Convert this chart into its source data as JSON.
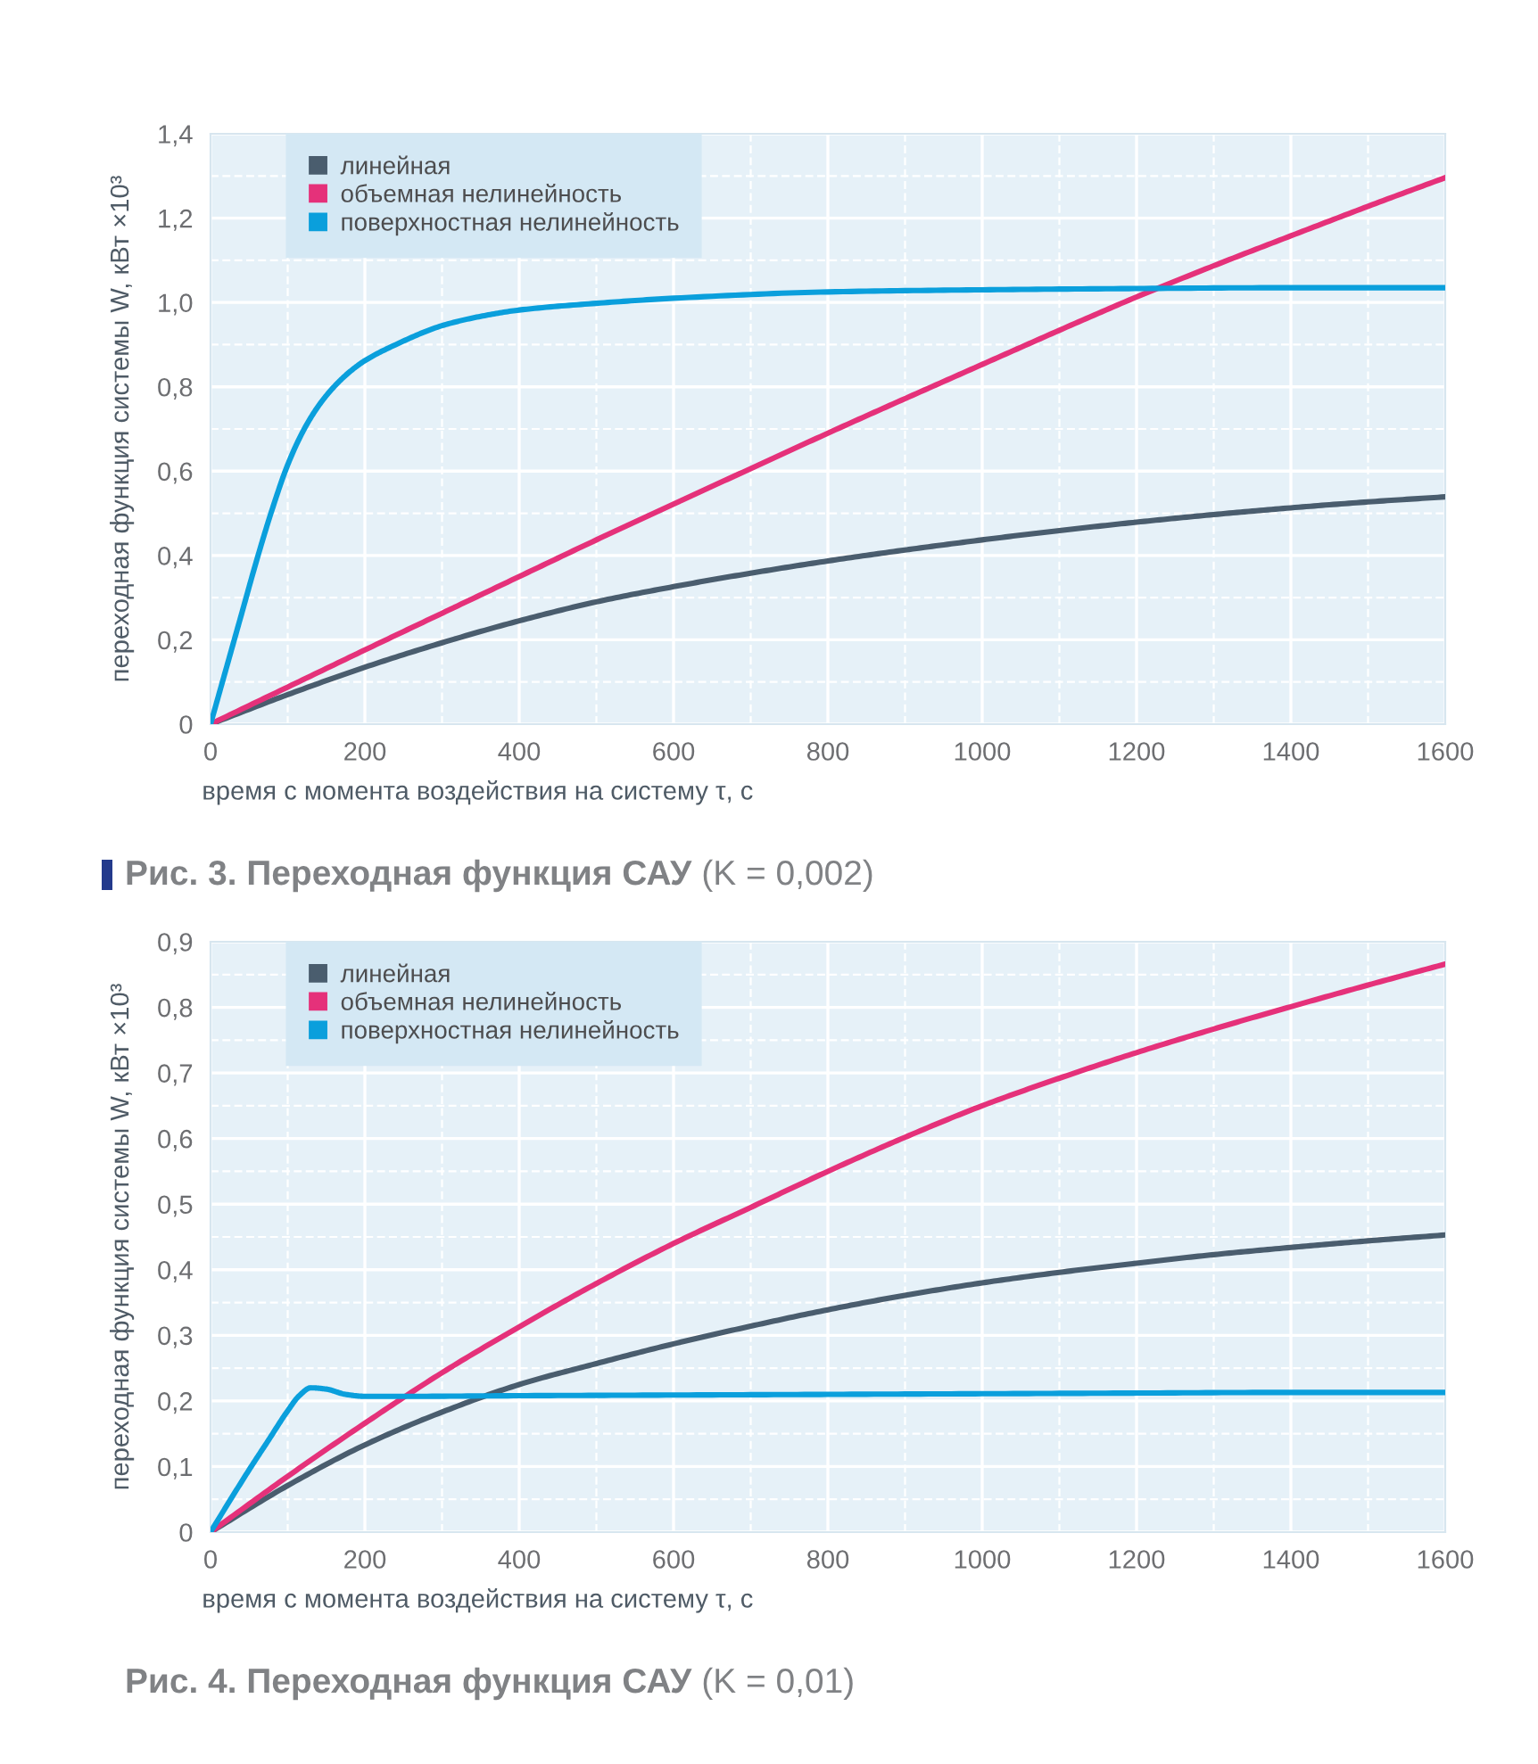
{
  "chart_data": [
    {
      "type": "line",
      "title": "Рис. 3. Переходная функция САУ",
      "subtitle": "(K = 0,002)",
      "xlabel": "время с момента воздействия на систему τ, с",
      "ylabel": "переходная функция системы W, кВт ×10³",
      "xlim": [
        0,
        1600
      ],
      "ylim": [
        0,
        1.4
      ],
      "xticks": [
        0,
        {
          "value": 100,
          "label": null
        },
        200,
        {
          "value": 300,
          "label": null
        },
        400,
        {
          "value": 500,
          "label": null
        },
        600,
        {
          "value": 700,
          "label": null
        },
        800,
        {
          "value": 900,
          "label": null
        },
        1000,
        {
          "value": 1100,
          "label": null
        },
        1200,
        {
          "value": 1300,
          "label": null
        },
        1400,
        {
          "value": 1500,
          "label": null
        },
        1600
      ],
      "yticks": [
        0,
        {
          "value": 0.1,
          "label": null
        },
        {
          "value": 0.2,
          "label": "0,2"
        },
        {
          "value": 0.3,
          "label": null
        },
        {
          "value": 0.4,
          "label": "0,4"
        },
        {
          "value": 0.5,
          "label": null
        },
        {
          "value": 0.6,
          "label": "0,6"
        },
        {
          "value": 0.7,
          "label": null
        },
        {
          "value": 0.8,
          "label": "0,8"
        },
        {
          "value": 0.9,
          "label": null
        },
        {
          "value": 1.0,
          "label": "1,0"
        },
        {
          "value": 1.1,
          "label": null
        },
        {
          "value": 1.2,
          "label": "1,2"
        },
        {
          "value": 1.3,
          "label": null
        },
        {
          "value": 1.4,
          "label": "1,4"
        }
      ],
      "grid": true,
      "legend": "top left",
      "series": [
        {
          "name": "линейная",
          "color": "#4a5d6e",
          "x": [
            0,
            100,
            200,
            300,
            400,
            500,
            600,
            700,
            800,
            900,
            1000,
            1100,
            1200,
            1300,
            1400,
            1500,
            1600
          ],
          "values": [
            0,
            0.07,
            0.135,
            0.193,
            0.245,
            0.29,
            0.326,
            0.358,
            0.387,
            0.413,
            0.437,
            0.459,
            0.479,
            0.497,
            0.513,
            0.527,
            0.539
          ]
        },
        {
          "name": "объемная нелинейность",
          "color": "#e5317a",
          "x": [
            0,
            100,
            200,
            300,
            400,
            500,
            600,
            700,
            800,
            900,
            1000,
            1100,
            1200,
            1300,
            1400,
            1500,
            1600
          ],
          "values": [
            0,
            0.088,
            0.176,
            0.263,
            0.35,
            0.437,
            0.522,
            0.606,
            0.69,
            0.772,
            0.853,
            0.934,
            1.013,
            1.087,
            1.158,
            1.228,
            1.296
          ]
        },
        {
          "name": "поверхностная нелинейность",
          "color": "#0a9fdc",
          "x": [
            0,
            20,
            40,
            60,
            80,
            100,
            120,
            140,
            160,
            180,
            200,
            240,
            300,
            350,
            400,
            500,
            600,
            800,
            1000,
            1200,
            1400,
            1600
          ],
          "values": [
            0,
            0.13,
            0.26,
            0.39,
            0.51,
            0.615,
            0.695,
            0.755,
            0.8,
            0.835,
            0.862,
            0.9,
            0.945,
            0.967,
            0.982,
            0.998,
            1.01,
            1.025,
            1.03,
            1.033,
            1.035,
            1.035
          ]
        }
      ]
    },
    {
      "type": "line",
      "title": "Рис. 4. Переходная функция САУ",
      "subtitle": "(K = 0,01)",
      "xlabel": "время с момента воздействия на систему τ, с",
      "ylabel": "переходная функция системы W, кВт ×10³",
      "xlim": [
        0,
        1600
      ],
      "ylim": [
        0,
        0.9
      ],
      "xticks": [
        0,
        {
          "value": 100,
          "label": null
        },
        200,
        {
          "value": 300,
          "label": null
        },
        400,
        {
          "value": 500,
          "label": null
        },
        600,
        {
          "value": 700,
          "label": null
        },
        800,
        {
          "value": 900,
          "label": null
        },
        1000,
        {
          "value": 1100,
          "label": null
        },
        1200,
        {
          "value": 1300,
          "label": null
        },
        1400,
        {
          "value": 1500,
          "label": null
        },
        1600
      ],
      "yticks": [
        0,
        {
          "value": 0.05,
          "label": null
        },
        {
          "value": 0.1,
          "label": "0,1"
        },
        {
          "value": 0.15,
          "label": null
        },
        {
          "value": 0.2,
          "label": "0,2"
        },
        {
          "value": 0.25,
          "label": null
        },
        {
          "value": 0.3,
          "label": "0,3"
        },
        {
          "value": 0.35,
          "label": null
        },
        {
          "value": 0.4,
          "label": "0,4"
        },
        {
          "value": 0.45,
          "label": null
        },
        {
          "value": 0.5,
          "label": "0,5"
        },
        {
          "value": 0.55,
          "label": null
        },
        {
          "value": 0.6,
          "label": "0,6"
        },
        {
          "value": 0.65,
          "label": null
        },
        {
          "value": 0.7,
          "label": "0,7"
        },
        {
          "value": 0.75,
          "label": null
        },
        {
          "value": 0.8,
          "label": "0,8"
        },
        {
          "value": 0.85,
          "label": null
        },
        {
          "value": 0.9,
          "label": "0,9"
        }
      ],
      "grid": true,
      "legend": "top left",
      "series": [
        {
          "name": "линейная",
          "color": "#4a5d6e",
          "x": [
            0,
            100,
            200,
            300,
            400,
            500,
            600,
            700,
            800,
            900,
            1000,
            1100,
            1200,
            1300,
            1400,
            1500,
            1600
          ],
          "values": [
            0,
            0.071,
            0.133,
            0.183,
            0.225,
            0.257,
            0.287,
            0.314,
            0.339,
            0.361,
            0.38,
            0.396,
            0.41,
            0.423,
            0.434,
            0.444,
            0.453
          ]
        },
        {
          "name": "объемная нелинейность",
          "color": "#e5317a",
          "x": [
            0,
            100,
            200,
            300,
            400,
            500,
            600,
            700,
            800,
            900,
            1000,
            1100,
            1200,
            1300,
            1400,
            1500,
            1600
          ],
          "values": [
            0,
            0.085,
            0.166,
            0.243,
            0.313,
            0.379,
            0.44,
            0.495,
            0.55,
            0.602,
            0.65,
            0.692,
            0.731,
            0.767,
            0.801,
            0.834,
            0.866
          ]
        },
        {
          "name": "поверхностная нелинейность",
          "color": "#0a9fdc",
          "x": [
            0,
            25,
            50,
            75,
            100,
            115,
            130,
            150,
            175,
            200,
            250,
            400,
            600,
            800,
            1000,
            1200,
            1400,
            1600
          ],
          "values": [
            0,
            0.048,
            0.095,
            0.14,
            0.185,
            0.208,
            0.22,
            0.218,
            0.21,
            0.207,
            0.207,
            0.208,
            0.209,
            0.21,
            0.211,
            0.212,
            0.213,
            0.213
          ]
        }
      ]
    }
  ]
}
